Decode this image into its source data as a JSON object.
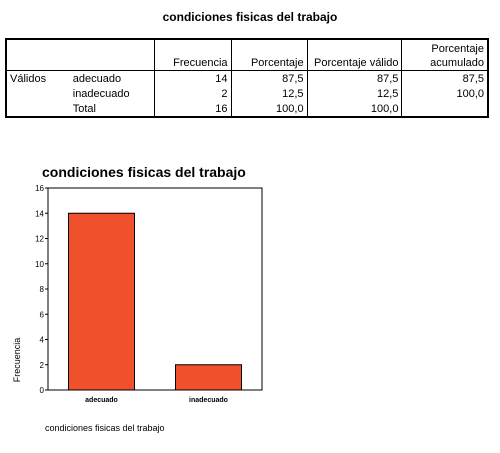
{
  "table": {
    "title": "condiciones fisicas del trabajo",
    "headers": [
      "",
      "",
      "Frecuencia",
      "Porcentaje",
      "Porcentaje válido",
      "Porcentaje acumulado"
    ],
    "rows": [
      {
        "group": "Válidos",
        "label": "adecuado",
        "freq": "14",
        "pct": "87,5",
        "valid": "87,5",
        "cum": "87,5"
      },
      {
        "group": "",
        "label": "inadecuado",
        "freq": "2",
        "pct": "12,5",
        "valid": "12,5",
        "cum": "100,0"
      },
      {
        "group": "",
        "label": "Total",
        "freq": "16",
        "pct": "100,0",
        "valid": "100,0",
        "cum": ""
      }
    ]
  },
  "chart_data": {
    "type": "bar",
    "title": "condiciones fisicas del trabajo",
    "categories": [
      "adecuado",
      "inadecuado"
    ],
    "values": [
      14,
      2
    ],
    "xlabel": "condiciones fisicas del trabajo",
    "ylabel": "Frecuencia",
    "ylim": [
      0,
      16
    ],
    "yticks": [
      0,
      2,
      4,
      6,
      8,
      10,
      12,
      14,
      16
    ],
    "bar_color": "#f0512c",
    "grid": false
  }
}
